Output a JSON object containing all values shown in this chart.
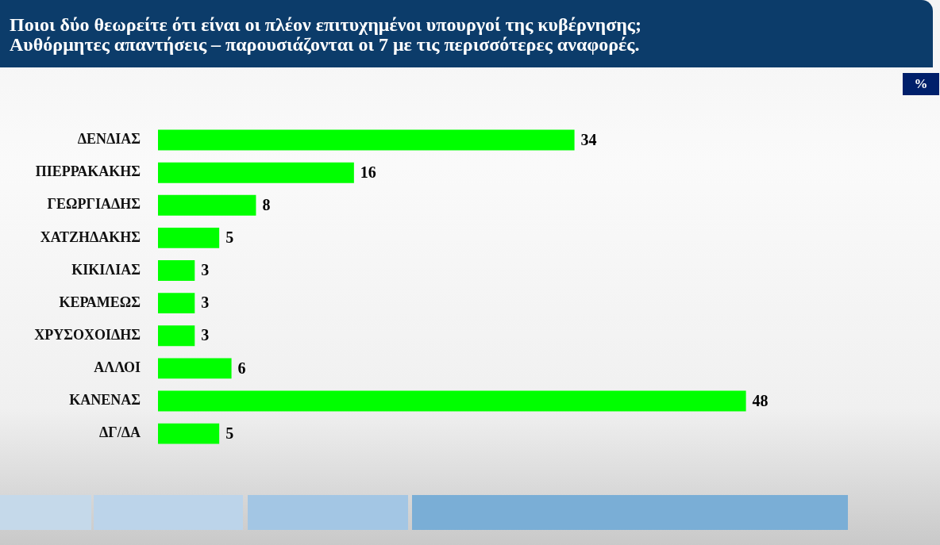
{
  "chart_data": {
    "type": "bar",
    "orientation": "horizontal",
    "title": "Ποιοι δύο θεωρείτε ότι είναι οι πλέον επιτυχημένοι υπουργοί της κυβέρνησης;",
    "subtitle": "Αυθόρμητες απαντήσεις – παρουσιάζονται οι 7 με τις περισσότερες αναφορές.",
    "categories": [
      "ΔΕΝΔΙΑΣ",
      "ΠΙΕΡΡΑΚΑΚΗΣ",
      "ΓΕΩΡΓΙΑΔΗΣ",
      "ΧΑΤΖΗΔΑΚΗΣ",
      "ΚΙΚΙΛΙΑΣ",
      "ΚΕΡΑΜΕΩΣ",
      "ΧΡΥΣΟΧΟΙΔΗΣ",
      "ΑΛΛΟΙ",
      "ΚΑΝΕΝΑΣ",
      "ΔΓ/ΔΑ"
    ],
    "values": [
      34,
      16,
      8,
      5,
      3,
      3,
      3,
      6,
      48,
      5
    ],
    "color": "#00ff00",
    "data_labels": true,
    "annotations": [
      "%"
    ]
  }
}
